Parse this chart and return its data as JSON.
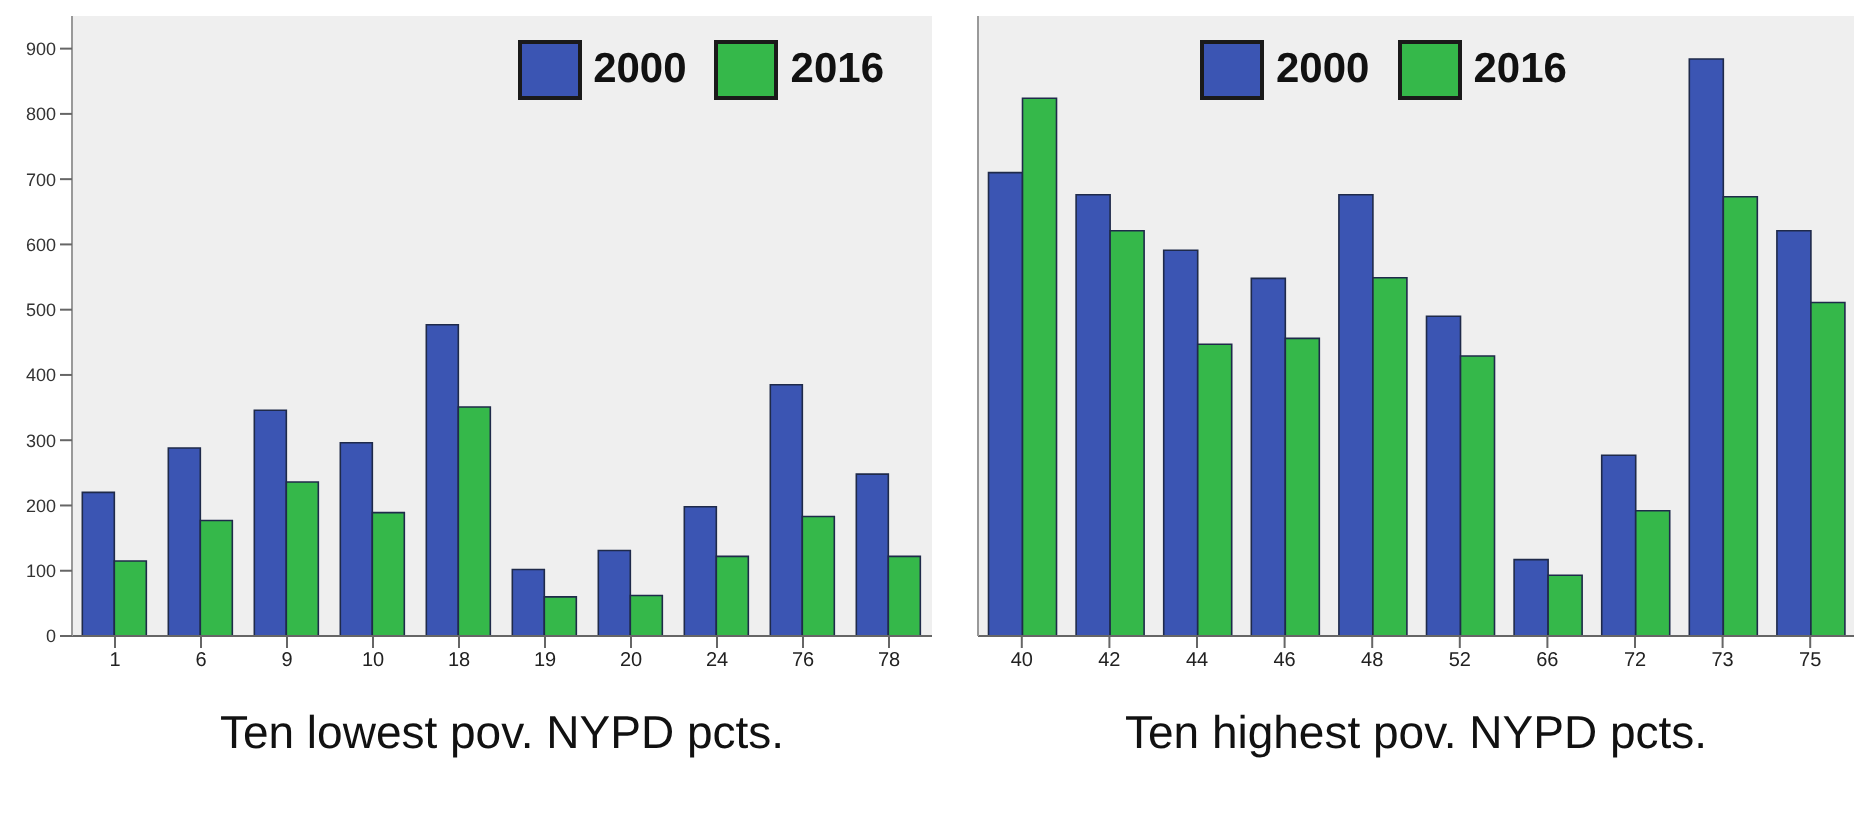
{
  "chart_data": [
    {
      "type": "bar",
      "xlabel": "Ten lowest pov. NYPD pcts.",
      "categories": [
        "1",
        "6",
        "9",
        "10",
        "18",
        "19",
        "20",
        "24",
        "76",
        "78"
      ],
      "series": [
        {
          "name": "2000",
          "color": "#3b55b3",
          "values": [
            220,
            288,
            346,
            296,
            477,
            102,
            131,
            198,
            385,
            248
          ]
        },
        {
          "name": "2016",
          "color": "#35b84a",
          "values": [
            115,
            177,
            236,
            189,
            351,
            60,
            62,
            122,
            183,
            122
          ]
        }
      ],
      "ylim": [
        0,
        950
      ],
      "yticks": [
        0,
        100,
        200,
        300,
        400,
        500,
        600,
        700,
        800,
        900
      ],
      "grid": false,
      "legend": "top right"
    },
    {
      "type": "bar",
      "xlabel": "Ten highest pov. NYPD pcts.",
      "categories": [
        "40",
        "42",
        "44",
        "46",
        "48",
        "52",
        "66",
        "72",
        "73",
        "75"
      ],
      "series": [
        {
          "name": "2000",
          "color": "#3b55b3",
          "values": [
            710,
            676,
            591,
            548,
            676,
            490,
            117,
            277,
            884,
            621
          ]
        },
        {
          "name": "2016",
          "color": "#35b84a",
          "values": [
            824,
            621,
            447,
            456,
            549,
            429,
            93,
            192,
            673,
            511
          ]
        }
      ],
      "ylim": [
        0,
        950
      ],
      "yticks": [
        0,
        100,
        200,
        300,
        400,
        500,
        600,
        700,
        800,
        900
      ],
      "tick_labels": "x",
      "grid": false,
      "legend": "top"
    }
  ]
}
